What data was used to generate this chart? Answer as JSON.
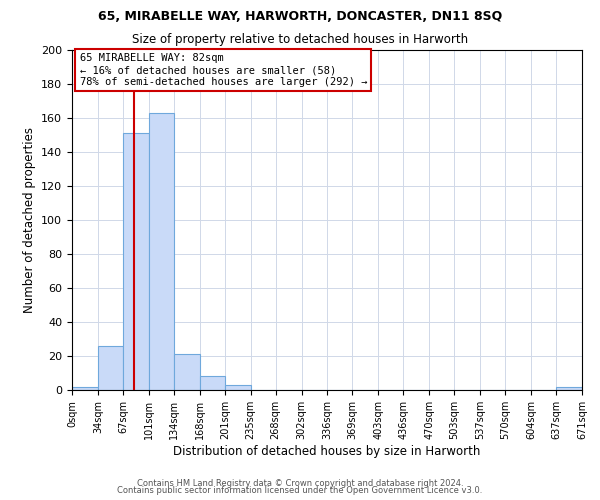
{
  "title1": "65, MIRABELLE WAY, HARWORTH, DONCASTER, DN11 8SQ",
  "title2": "Size of property relative to detached houses in Harworth",
  "xlabel": "Distribution of detached houses by size in Harworth",
  "ylabel": "Number of detached properties",
  "bin_edges": [
    0,
    34,
    67,
    101,
    134,
    168,
    201,
    235,
    268,
    302,
    336,
    369,
    403,
    436,
    470,
    503,
    537,
    570,
    604,
    637,
    671
  ],
  "bar_heights": [
    2,
    26,
    151,
    163,
    21,
    8,
    3,
    0,
    0,
    0,
    0,
    0,
    0,
    0,
    0,
    0,
    0,
    0,
    0,
    2
  ],
  "bar_color": "#c9daf8",
  "bar_edge_color": "#6fa8dc",
  "property_size": 82,
  "property_label": "65 MIRABELLE WAY: 82sqm",
  "annotation_line1": "← 16% of detached houses are smaller (58)",
  "annotation_line2": "78% of semi-detached houses are larger (292) →",
  "annotation_box_color": "#ffffff",
  "annotation_box_edge_color": "#cc0000",
  "vline_color": "#cc0000",
  "ylim": [
    0,
    200
  ],
  "yticks": [
    0,
    20,
    40,
    60,
    80,
    100,
    120,
    140,
    160,
    180,
    200
  ],
  "footer_line1": "Contains HM Land Registry data © Crown copyright and database right 2024.",
  "footer_line2": "Contains public sector information licensed under the Open Government Licence v3.0.",
  "background_color": "#ffffff",
  "grid_color": "#d0d8e8"
}
